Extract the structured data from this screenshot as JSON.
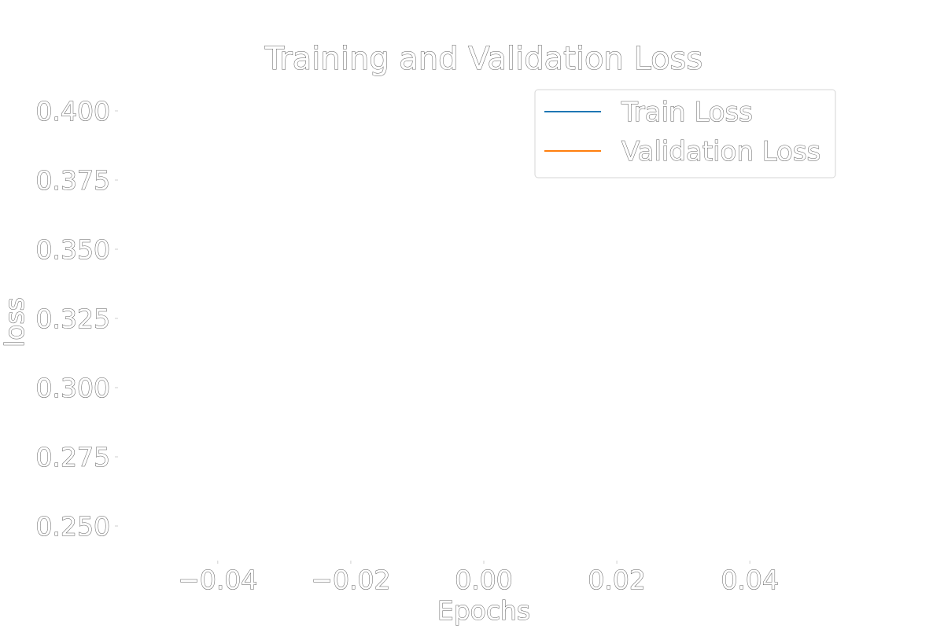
{
  "chart_data": {
    "type": "line",
    "title": "Training and Validation Loss",
    "xlabel": "Epochs",
    "ylabel": "loss",
    "xlim": [
      -0.055,
      0.055
    ],
    "ylim": [
      0.2375,
      0.4125
    ],
    "xticks": [
      -0.04,
      -0.02,
      0.0,
      0.02,
      0.04
    ],
    "xtick_labels": [
      "−0.04",
      "−0.02",
      "0.00",
      "0.02",
      "0.04"
    ],
    "yticks": [
      0.25,
      0.275,
      0.3,
      0.325,
      0.35,
      0.375,
      0.4
    ],
    "ytick_labels": [
      "0.250",
      "0.275",
      "0.300",
      "0.325",
      "0.350",
      "0.375",
      "0.400"
    ],
    "grid": false,
    "legend_position": "top-right",
    "series": [
      {
        "name": "Train Loss",
        "color": "#1f77b4",
        "x": [],
        "y": []
      },
      {
        "name": "Validation Loss",
        "color": "#ff7f0e",
        "x": [],
        "y": []
      }
    ]
  }
}
